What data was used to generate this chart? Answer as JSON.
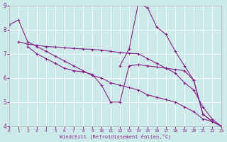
{
  "xlabel": "Windchill (Refroidissement éolien,°C)",
  "background_color": "#cceaea",
  "line_color": "#882288",
  "xlim": [
    0,
    23
  ],
  "ylim": [
    4,
    9
  ],
  "xticks": [
    0,
    1,
    2,
    3,
    4,
    5,
    6,
    7,
    8,
    9,
    10,
    11,
    12,
    13,
    14,
    15,
    16,
    17,
    18,
    19,
    20,
    21,
    22,
    23
  ],
  "yticks": [
    4,
    5,
    6,
    7,
    8,
    9
  ],
  "lines": [
    {
      "x": [
        0,
        1,
        2,
        3,
        4,
        5,
        6,
        7,
        8,
        9,
        10,
        11,
        12,
        13,
        14,
        15,
        16,
        17,
        18,
        19,
        20,
        21,
        22,
        23
      ],
      "y": [
        8.2,
        8.4,
        7.5,
        7.3,
        7.1,
        6.9,
        6.7,
        6.5,
        6.3,
        6.1,
        6.0,
        5.8,
        5.7,
        5.6,
        5.5,
        5.3,
        5.2,
        5.1,
        5.0,
        4.8,
        4.6,
        4.3,
        4.2,
        4.0
      ]
    },
    {
      "x": [
        1,
        2,
        3,
        4,
        5,
        6,
        7,
        8,
        9,
        10,
        11,
        12,
        13,
        14,
        15,
        16,
        17,
        18,
        19,
        20,
        21,
        22,
        23
      ],
      "y": [
        7.5,
        7.4,
        7.35,
        7.3,
        7.28,
        7.25,
        7.22,
        7.2,
        7.18,
        7.15,
        7.1,
        7.05,
        7.02,
        7.0,
        6.8,
        6.6,
        6.4,
        6.2,
        5.8,
        5.5,
        4.8,
        4.3,
        4.0
      ]
    },
    {
      "x": [
        2,
        3,
        4,
        5,
        6,
        7,
        8,
        9,
        10,
        11,
        12,
        13,
        14,
        15,
        16,
        17,
        18,
        19,
        20,
        21,
        22,
        23
      ],
      "y": [
        7.3,
        7.0,
        6.8,
        6.6,
        6.4,
        6.3,
        6.25,
        6.15,
        5.7,
        5.0,
        5.0,
        6.5,
        6.55,
        6.5,
        6.45,
        6.4,
        6.35,
        6.3,
        5.9,
        4.5,
        4.2,
        4.0
      ]
    },
    {
      "x": [
        12,
        13,
        14,
        15,
        16,
        17,
        18,
        19,
        20,
        21,
        22,
        23
      ],
      "y": [
        6.5,
        7.2,
        9.1,
        8.9,
        8.1,
        7.8,
        7.1,
        6.5,
        5.9,
        4.5,
        4.2,
        4.0
      ]
    }
  ]
}
